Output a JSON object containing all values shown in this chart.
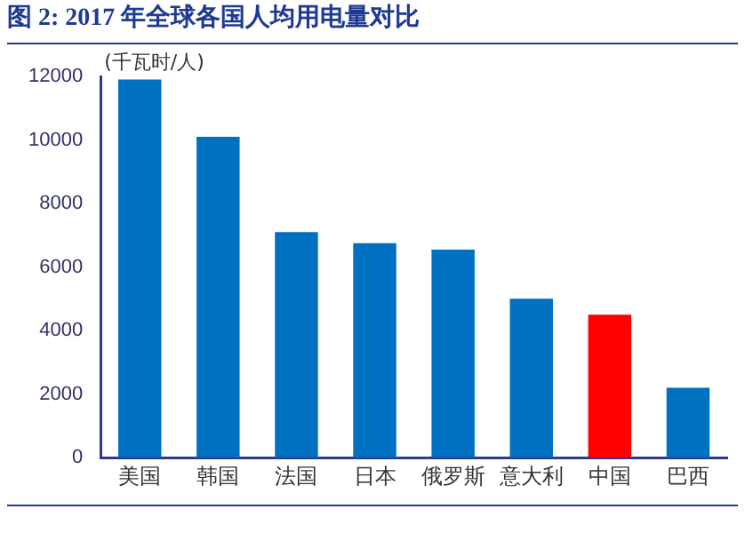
{
  "chart_data": {
    "type": "bar",
    "title": "图 2: 2017 年全球各国人均用电量对比",
    "ylabel": "(千瓦时/人)",
    "categories": [
      "美国",
      "韩国",
      "法国",
      "日本",
      "俄罗斯",
      "意大利",
      "中国",
      "巴西"
    ],
    "values": [
      11900,
      10100,
      7100,
      6750,
      6550,
      5000,
      4500,
      2200
    ],
    "colors": [
      "#0070c0",
      "#0070c0",
      "#0070c0",
      "#0070c0",
      "#0070c0",
      "#0070c0",
      "#ff0000",
      "#0070c0"
    ],
    "ylim": [
      0,
      12000
    ],
    "yticks": [
      0,
      2000,
      4000,
      6000,
      8000,
      10000,
      12000
    ],
    "grid": false,
    "legend": false
  }
}
